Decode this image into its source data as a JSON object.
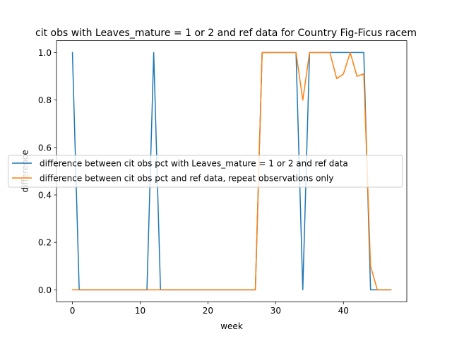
{
  "chart_data": {
    "type": "line",
    "title": "cit obs with Leaves_mature = 1 or 2 and ref data for Country Fig-Ficus racem",
    "xlabel": "week",
    "ylabel": "difference",
    "xlim": [
      -2.35,
      49.35
    ],
    "ylim": [
      -0.05,
      1.05
    ],
    "xticks": [
      0,
      10,
      20,
      30,
      40
    ],
    "yticks": [
      0.0,
      0.2,
      0.4,
      0.6,
      0.8,
      1.0
    ],
    "xtick_labels": [
      "0",
      "10",
      "20",
      "30",
      "40"
    ],
    "ytick_labels": [
      "0.0",
      "0.2",
      "0.4",
      "0.6",
      "0.8",
      "1.0"
    ],
    "grid": false,
    "legend_position": "center-left",
    "series": [
      {
        "name": "difference between cit obs pct with Leaves_mature = 1 or 2 and ref data",
        "color": "#1f77b4",
        "x": [
          0,
          1,
          11,
          12,
          13,
          27,
          28,
          33,
          34,
          35,
          43,
          44,
          47
        ],
        "y": [
          1.0,
          0.0,
          0.0,
          1.0,
          0.0,
          0.0,
          1.0,
          1.0,
          0.0,
          1.0,
          1.0,
          0.0,
          0.0
        ]
      },
      {
        "name": "difference between cit obs pct and ref data, repeat observations only",
        "color": "#ff7f0e",
        "x": [
          0,
          27,
          28,
          33,
          34,
          35,
          38,
          39,
          40,
          41,
          42,
          43,
          44,
          45,
          47
        ],
        "y": [
          0.0,
          0.0,
          1.0,
          1.0,
          0.8,
          1.0,
          1.0,
          0.89,
          0.91,
          1.0,
          0.9,
          0.91,
          0.1,
          0.0,
          0.0
        ]
      }
    ]
  }
}
